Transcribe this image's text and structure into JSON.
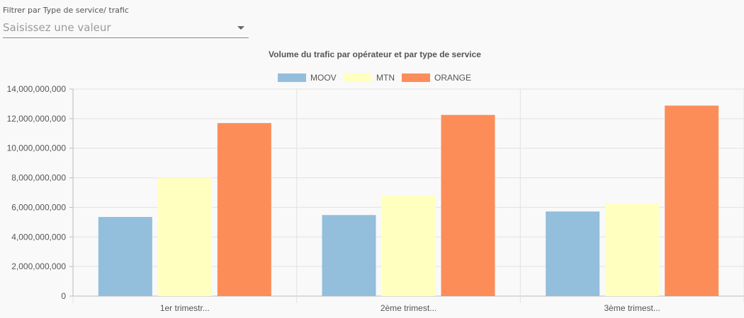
{
  "filter": {
    "label": "Filtrer par Type de service/ trafic",
    "placeholder": "Saisissez une valeur",
    "icon": "chevron-down-icon"
  },
  "chart_data": {
    "type": "bar",
    "title": "Volume du trafic par opérateur et par type de service",
    "categories": [
      "1er trimestr...",
      "2ème trimest...",
      "3ème trimest..."
    ],
    "series": [
      {
        "name": "MOOV",
        "color": "#93bedc",
        "values": [
          5350000000,
          5480000000,
          5720000000
        ]
      },
      {
        "name": "MTN",
        "color": "#ffffbf",
        "values": [
          8000000000,
          6800000000,
          6250000000
        ]
      },
      {
        "name": "ORANGE",
        "color": "#fc8d59",
        "values": [
          11700000000,
          12250000000,
          12880000000
        ]
      }
    ],
    "ylim": [
      0,
      14000000000
    ],
    "yticks": [
      "0",
      "2,000,000,000",
      "4,000,000,000",
      "6,000,000,000",
      "8,000,000,000",
      "10,000,000,000",
      "12,000,000,000",
      "14,000,000,000"
    ],
    "grid": true,
    "legend": "top-center"
  }
}
